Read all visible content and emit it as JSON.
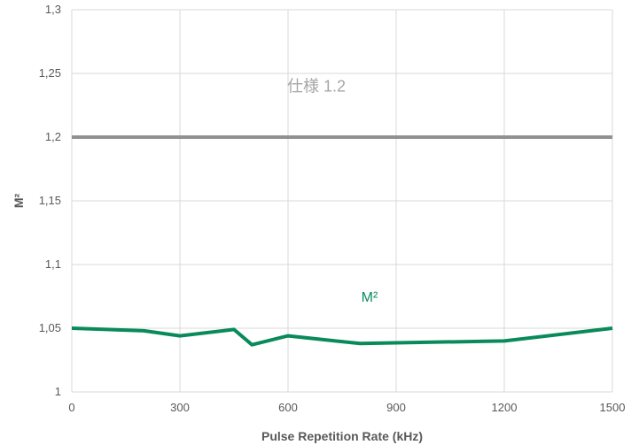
{
  "chart_data": {
    "type": "line",
    "title": "",
    "xlabel": "Pulse Repetition Rate (kHz)",
    "ylabel": "M²",
    "xlim": [
      0,
      1500
    ],
    "ylim": [
      1,
      1.3
    ],
    "x_ticks": [
      0,
      300,
      600,
      900,
      1200,
      1500
    ],
    "x_tick_labels": [
      "0",
      "300",
      "600",
      "900",
      "1200",
      "1500"
    ],
    "y_ticks": [
      1,
      1.05,
      1.1,
      1.15,
      1.2,
      1.25,
      1.3
    ],
    "y_tick_labels": [
      "1",
      "1,05",
      "1,1",
      "1,15",
      "1,2",
      "1,25",
      "1,3"
    ],
    "grid": true,
    "series": [
      {
        "name": "M²",
        "color": "#0a8a5a",
        "x": [
          0,
          200,
          300,
          450,
          500,
          600,
          800,
          1000,
          1200,
          1500
        ],
        "y": [
          1.05,
          1.048,
          1.044,
          1.049,
          1.037,
          1.044,
          1.038,
          1.039,
          1.04,
          1.05
        ]
      }
    ],
    "reference_lines": [
      {
        "label": "仕様 1.2",
        "y": 1.2,
        "color": "#919191",
        "text_color": "#a6a6a6"
      }
    ]
  }
}
